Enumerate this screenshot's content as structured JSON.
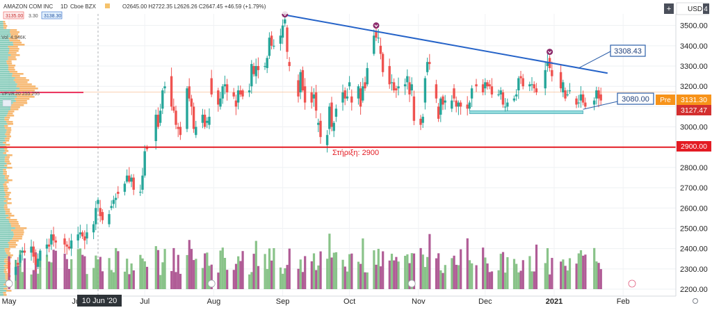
{
  "header": {
    "symbol": "AMAZON COM INC",
    "interval": "1D",
    "exchange": "Cboe BZX",
    "ohlc": "O2645.00  H2722.35  L2626.26  C2647.45  +46.59 (+1.79%)",
    "bid": "3135.00",
    "spread": "3.30",
    "ask": "3138.30",
    "currency": "USD",
    "badge": "4"
  },
  "left_panel": {
    "vol_label": "Vol",
    "vol_value": "4.946K",
    "vpvr_label": "VPVR",
    "vpvr_values": "20  255  255"
  },
  "annotations": {
    "support_label": "Στήριξη: 2900",
    "trendline_value_label": "3308.43",
    "box_value_label": "3080.00",
    "date_marker": "10 Jun '20"
  },
  "price_tags": {
    "pre_label": "Pre",
    "pre_value": "3131.30",
    "last_value": "3127.47",
    "support_value": "2900.00"
  },
  "colors": {
    "up": "#26a69a",
    "down": "#ef5350",
    "support": "#e31b23",
    "trend": "#2563c8",
    "box": "#7fd6d6",
    "vol_up": "#7cbd7c",
    "vol_down": "#a74a8b",
    "pre_tag": "#f7931a",
    "last_tag": "#d32f2f"
  },
  "chart_data": {
    "type": "candlestick",
    "ylim": [
      2180,
      3600
    ],
    "y_ticks": [
      2200,
      2300,
      2400,
      2500,
      2600,
      2700,
      2800,
      2900,
      3000,
      3100,
      3200,
      3300,
      3400,
      3500
    ],
    "x_ticks": [
      "May",
      "Jun",
      "Jul",
      "Aug",
      "Sep",
      "Oct",
      "Nov",
      "Dec",
      "2021",
      "Feb"
    ],
    "support_level": 2900,
    "trendline": {
      "start": {
        "date": "2020-09-02",
        "price": 3552
      },
      "end": {
        "date": "2021-01-25",
        "price": 3265
      },
      "label": 3308.43
    },
    "support_box": {
      "start": "2020-11-24",
      "end": "2021-01-14",
      "low": 3065,
      "high": 3080
    },
    "series": [
      {
        "date": "2020-05-01",
        "open": 2336,
        "close": 2280
      },
      {
        "date": "2020-05-04",
        "open": 2270,
        "close": 2310
      },
      {
        "date": "2020-05-05",
        "open": 2330,
        "close": 2320
      },
      {
        "date": "2020-05-06",
        "open": 2330,
        "close": 2370
      },
      {
        "date": "2020-05-07",
        "open": 2380,
        "close": 2390
      },
      {
        "date": "2020-05-08",
        "open": 2390,
        "close": 2380
      },
      {
        "date": "2020-05-11",
        "open": 2380,
        "close": 2410
      },
      {
        "date": "2020-05-12",
        "open": 2410,
        "close": 2360
      },
      {
        "date": "2020-05-13",
        "open": 2370,
        "close": 2320
      },
      {
        "date": "2020-05-14",
        "open": 2310,
        "close": 2350
      },
      {
        "date": "2020-05-15",
        "open": 2340,
        "close": 2390
      },
      {
        "date": "2020-05-18",
        "open": 2400,
        "close": 2420
      },
      {
        "date": "2020-05-19",
        "open": 2420,
        "close": 2410
      },
      {
        "date": "2020-05-20",
        "open": 2420,
        "close": 2470
      },
      {
        "date": "2020-05-21",
        "open": 2470,
        "close": 2440
      },
      {
        "date": "2020-05-22",
        "open": 2440,
        "close": 2430
      },
      {
        "date": "2020-05-26",
        "open": 2450,
        "close": 2420
      },
      {
        "date": "2020-05-27",
        "open": 2420,
        "close": 2410
      },
      {
        "date": "2020-05-28",
        "open": 2410,
        "close": 2400
      },
      {
        "date": "2020-05-29",
        "open": 2400,
        "close": 2440
      },
      {
        "date": "2020-06-01",
        "open": 2440,
        "close": 2470
      },
      {
        "date": "2020-06-02",
        "open": 2470,
        "close": 2480
      },
      {
        "date": "2020-06-03",
        "open": 2480,
        "close": 2460
      },
      {
        "date": "2020-06-04",
        "open": 2460,
        "close": 2440
      },
      {
        "date": "2020-06-05",
        "open": 2450,
        "close": 2480
      },
      {
        "date": "2020-06-08",
        "open": 2480,
        "close": 2520
      },
      {
        "date": "2020-06-09",
        "open": 2520,
        "close": 2600
      },
      {
        "date": "2020-06-10",
        "open": 2620,
        "close": 2640
      },
      {
        "date": "2020-06-11",
        "open": 2600,
        "close": 2560
      },
      {
        "date": "2020-06-12",
        "open": 2580,
        "close": 2540
      },
      {
        "date": "2020-06-15",
        "open": 2520,
        "close": 2570
      },
      {
        "date": "2020-06-16",
        "open": 2600,
        "close": 2610
      },
      {
        "date": "2020-06-17",
        "open": 2620,
        "close": 2640
      },
      {
        "date": "2020-06-18",
        "open": 2640,
        "close": 2650
      },
      {
        "date": "2020-06-19",
        "open": 2680,
        "close": 2670
      },
      {
        "date": "2020-06-22",
        "open": 2680,
        "close": 2720
      },
      {
        "date": "2020-06-23",
        "open": 2730,
        "close": 2760
      },
      {
        "date": "2020-06-24",
        "open": 2760,
        "close": 2730
      },
      {
        "date": "2020-06-25",
        "open": 2730,
        "close": 2750
      },
      {
        "date": "2020-06-26",
        "open": 2750,
        "close": 2690
      },
      {
        "date": "2020-06-29",
        "open": 2680,
        "close": 2680
      },
      {
        "date": "2020-06-30",
        "open": 2690,
        "close": 2760
      },
      {
        "date": "2020-07-01",
        "open": 2760,
        "close": 2880
      },
      {
        "date": "2020-07-02",
        "open": 2900,
        "close": 2890
      },
      {
        "date": "2020-07-06",
        "open": 2930,
        "close": 3060
      },
      {
        "date": "2020-07-07",
        "open": 3060,
        "close": 3000
      },
      {
        "date": "2020-07-08",
        "open": 3020,
        "close": 3080
      },
      {
        "date": "2020-07-09",
        "open": 3090,
        "close": 3180
      },
      {
        "date": "2020-07-10",
        "open": 3190,
        "close": 3200
      },
      {
        "date": "2020-07-13",
        "open": 3250,
        "close": 3100
      },
      {
        "date": "2020-07-14",
        "open": 3100,
        "close": 3080
      },
      {
        "date": "2020-07-15",
        "open": 3080,
        "close": 3010
      },
      {
        "date": "2020-07-16",
        "open": 3000,
        "close": 2990
      },
      {
        "date": "2020-07-17",
        "open": 3000,
        "close": 2960
      },
      {
        "date": "2020-07-20",
        "open": 2990,
        "close": 3190
      },
      {
        "date": "2020-07-21",
        "open": 3200,
        "close": 3140
      },
      {
        "date": "2020-07-22",
        "open": 3140,
        "close": 3100
      },
      {
        "date": "2020-07-23",
        "open": 3100,
        "close": 2990
      },
      {
        "date": "2020-07-24",
        "open": 2960,
        "close": 3000
      },
      {
        "date": "2020-07-27",
        "open": 3020,
        "close": 3060
      },
      {
        "date": "2020-07-28",
        "open": 3060,
        "close": 3000
      },
      {
        "date": "2020-07-29",
        "open": 3020,
        "close": 3030
      },
      {
        "date": "2020-07-30",
        "open": 3010,
        "close": 3050
      },
      {
        "date": "2020-07-31",
        "open": 3240,
        "close": 3160
      },
      {
        "date": "2020-08-03",
        "open": 3180,
        "close": 3110
      },
      {
        "date": "2020-08-04",
        "open": 3100,
        "close": 3140
      },
      {
        "date": "2020-08-05",
        "open": 3140,
        "close": 3200
      },
      {
        "date": "2020-08-06",
        "open": 3200,
        "close": 3210
      },
      {
        "date": "2020-08-07",
        "open": 3210,
        "close": 3170
      },
      {
        "date": "2020-08-10",
        "open": 3170,
        "close": 3150
      },
      {
        "date": "2020-08-11",
        "open": 3130,
        "close": 3100
      },
      {
        "date": "2020-08-12",
        "open": 3120,
        "close": 3180
      },
      {
        "date": "2020-08-13",
        "open": 3180,
        "close": 3160
      },
      {
        "date": "2020-08-14",
        "open": 3180,
        "close": 3150
      },
      {
        "date": "2020-08-17",
        "open": 3170,
        "close": 3180
      },
      {
        "date": "2020-08-18",
        "open": 3200,
        "close": 3310
      },
      {
        "date": "2020-08-19",
        "open": 3300,
        "close": 3260
      },
      {
        "date": "2020-08-20",
        "open": 3250,
        "close": 3300
      },
      {
        "date": "2020-08-21",
        "open": 3300,
        "close": 3280
      },
      {
        "date": "2020-08-24",
        "open": 3300,
        "close": 3300
      },
      {
        "date": "2020-08-25",
        "open": 3290,
        "close": 3340
      },
      {
        "date": "2020-08-26",
        "open": 3350,
        "close": 3440
      },
      {
        "date": "2020-08-27",
        "open": 3450,
        "close": 3400
      },
      {
        "date": "2020-08-28",
        "open": 3400,
        "close": 3400
      },
      {
        "date": "2020-08-31",
        "open": 3410,
        "close": 3450
      },
      {
        "date": "2020-09-01",
        "open": 3440,
        "close": 3500
      },
      {
        "date": "2020-09-02",
        "open": 3510,
        "close": 3530
      },
      {
        "date": "2020-09-03",
        "open": 3490,
        "close": 3370
      },
      {
        "date": "2020-09-04",
        "open": 3320,
        "close": 3300
      },
      {
        "date": "2020-09-08",
        "open": 3230,
        "close": 3150
      },
      {
        "date": "2020-09-09",
        "open": 3170,
        "close": 3270
      },
      {
        "date": "2020-09-10",
        "open": 3280,
        "close": 3180
      },
      {
        "date": "2020-09-11",
        "open": 3200,
        "close": 3120
      },
      {
        "date": "2020-09-14",
        "open": 3170,
        "close": 3120
      },
      {
        "date": "2020-09-15",
        "open": 3140,
        "close": 3160
      },
      {
        "date": "2020-09-16",
        "open": 3170,
        "close": 3080
      },
      {
        "date": "2020-09-17",
        "open": 3010,
        "close": 3020
      },
      {
        "date": "2020-09-18",
        "open": 3030,
        "close": 2950
      },
      {
        "date": "2020-09-21",
        "open": 2910,
        "close": 2960
      },
      {
        "date": "2020-09-22",
        "open": 2990,
        "close": 3100
      },
      {
        "date": "2020-09-23",
        "open": 3120,
        "close": 3000
      },
      {
        "date": "2020-09-24",
        "open": 2980,
        "close": 3020
      },
      {
        "date": "2020-09-25",
        "open": 3050,
        "close": 3090
      },
      {
        "date": "2020-09-28",
        "open": 3120,
        "close": 3170
      },
      {
        "date": "2020-09-29",
        "open": 3180,
        "close": 3140
      },
      {
        "date": "2020-09-30",
        "open": 3140,
        "close": 3150
      },
      {
        "date": "2020-10-01",
        "open": 3200,
        "close": 3220
      },
      {
        "date": "2020-10-02",
        "open": 3150,
        "close": 3120
      },
      {
        "date": "2020-10-05",
        "open": 3140,
        "close": 3200
      },
      {
        "date": "2020-10-06",
        "open": 3190,
        "close": 3100
      },
      {
        "date": "2020-10-07",
        "open": 3130,
        "close": 3200
      },
      {
        "date": "2020-10-08",
        "open": 3220,
        "close": 3190
      },
      {
        "date": "2020-10-09",
        "open": 3210,
        "close": 3290
      },
      {
        "date": "2020-10-12",
        "open": 3360,
        "close": 3450
      },
      {
        "date": "2020-10-13",
        "open": 3470,
        "close": 3440
      },
      {
        "date": "2020-10-14",
        "open": 3440,
        "close": 3440
      },
      {
        "date": "2020-10-15",
        "open": 3400,
        "close": 3360
      },
      {
        "date": "2020-10-16",
        "open": 3360,
        "close": 3270
      },
      {
        "date": "2020-10-19",
        "open": 3300,
        "close": 3210
      },
      {
        "date": "2020-10-20",
        "open": 3220,
        "close": 3220
      },
      {
        "date": "2020-10-21",
        "open": 3220,
        "close": 3180
      },
      {
        "date": "2020-10-22",
        "open": 3190,
        "close": 3180
      },
      {
        "date": "2020-10-23",
        "open": 3190,
        "close": 3200
      },
      {
        "date": "2020-10-26",
        "open": 3200,
        "close": 3210
      },
      {
        "date": "2020-10-27",
        "open": 3220,
        "close": 3250
      },
      {
        "date": "2020-10-28",
        "open": 3220,
        "close": 3160
      },
      {
        "date": "2020-10-29",
        "open": 3180,
        "close": 3210
      },
      {
        "date": "2020-10-30",
        "open": 3150,
        "close": 3030
      },
      {
        "date": "2020-11-02",
        "open": 3040,
        "close": 3010
      },
      {
        "date": "2020-11-03",
        "open": 3020,
        "close": 3050
      },
      {
        "date": "2020-11-04",
        "open": 3120,
        "close": 3240
      },
      {
        "date": "2020-11-05",
        "open": 3270,
        "close": 3320
      },
      {
        "date": "2020-11-06",
        "open": 3320,
        "close": 3310
      },
      {
        "date": "2020-11-09",
        "open": 3210,
        "close": 3140
      },
      {
        "date": "2020-11-10",
        "open": 3100,
        "close": 3040
      },
      {
        "date": "2020-11-11",
        "open": 3060,
        "close": 3140
      },
      {
        "date": "2020-11-12",
        "open": 3150,
        "close": 3110
      },
      {
        "date": "2020-11-13",
        "open": 3120,
        "close": 3130
      },
      {
        "date": "2020-11-16",
        "open": 3090,
        "close": 3130
      },
      {
        "date": "2020-11-17",
        "open": 3190,
        "close": 3140
      },
      {
        "date": "2020-11-18",
        "open": 3130,
        "close": 3100
      },
      {
        "date": "2020-11-19",
        "open": 3100,
        "close": 3120
      },
      {
        "date": "2020-11-20",
        "open": 3120,
        "close": 3100
      },
      {
        "date": "2020-11-23",
        "open": 3110,
        "close": 3090
      },
      {
        "date": "2020-11-24",
        "open": 3090,
        "close": 3120
      },
      {
        "date": "2020-11-25",
        "open": 3140,
        "close": 3190
      },
      {
        "date": "2020-11-27",
        "open": 3210,
        "close": 3200
      },
      {
        "date": "2020-11-30",
        "open": 3210,
        "close": 3170
      },
      {
        "date": "2020-12-01",
        "open": 3190,
        "close": 3220
      },
      {
        "date": "2020-12-02",
        "open": 3220,
        "close": 3200
      },
      {
        "date": "2020-12-03",
        "open": 3210,
        "close": 3200
      },
      {
        "date": "2020-12-04",
        "open": 3200,
        "close": 3160
      },
      {
        "date": "2020-12-07",
        "open": 3160,
        "close": 3160
      },
      {
        "date": "2020-12-08",
        "open": 3160,
        "close": 3180
      },
      {
        "date": "2020-12-09",
        "open": 3170,
        "close": 3110
      },
      {
        "date": "2020-12-10",
        "open": 3100,
        "close": 3100
      },
      {
        "date": "2020-12-11",
        "open": 3100,
        "close": 3120
      },
      {
        "date": "2020-12-14",
        "open": 3130,
        "close": 3140
      },
      {
        "date": "2020-12-15",
        "open": 3150,
        "close": 3160
      },
      {
        "date": "2020-12-16",
        "open": 3180,
        "close": 3240
      },
      {
        "date": "2020-12-17",
        "open": 3250,
        "close": 3240
      },
      {
        "date": "2020-12-18",
        "open": 3240,
        "close": 3200
      },
      {
        "date": "2020-12-21",
        "open": 3200,
        "close": 3210
      },
      {
        "date": "2020-12-22",
        "open": 3210,
        "close": 3210
      },
      {
        "date": "2020-12-23",
        "open": 3210,
        "close": 3190
      },
      {
        "date": "2020-12-24",
        "open": 3190,
        "close": 3170
      },
      {
        "date": "2020-12-28",
        "open": 3190,
        "close": 3280
      },
      {
        "date": "2020-12-29",
        "open": 3300,
        "close": 3320
      },
      {
        "date": "2020-12-30",
        "open": 3340,
        "close": 3290
      },
      {
        "date": "2020-12-31",
        "open": 3280,
        "close": 3250
      },
      {
        "date": "2021-01-04",
        "open": 3270,
        "close": 3190
      },
      {
        "date": "2021-01-05",
        "open": 3170,
        "close": 3220
      },
      {
        "date": "2021-01-06",
        "open": 3180,
        "close": 3140
      },
      {
        "date": "2021-01-07",
        "open": 3160,
        "close": 3160
      },
      {
        "date": "2021-01-08",
        "open": 3180,
        "close": 3180
      },
      {
        "date": "2021-01-11",
        "open": 3140,
        "close": 3110
      },
      {
        "date": "2021-01-12",
        "open": 3120,
        "close": 3120
      },
      {
        "date": "2021-01-13",
        "open": 3130,
        "close": 3160
      },
      {
        "date": "2021-01-14",
        "open": 3160,
        "close": 3120
      },
      {
        "date": "2021-01-15",
        "open": 3120,
        "close": 3100
      },
      {
        "date": "2021-01-19",
        "open": 3110,
        "close": 3130
      },
      {
        "date": "2021-01-20",
        "open": 3140,
        "close": 3180
      },
      {
        "date": "2021-01-21",
        "open": 3180,
        "close": 3140
      },
      {
        "date": "2021-01-22",
        "open": 3160,
        "close": 3130
      }
    ]
  }
}
